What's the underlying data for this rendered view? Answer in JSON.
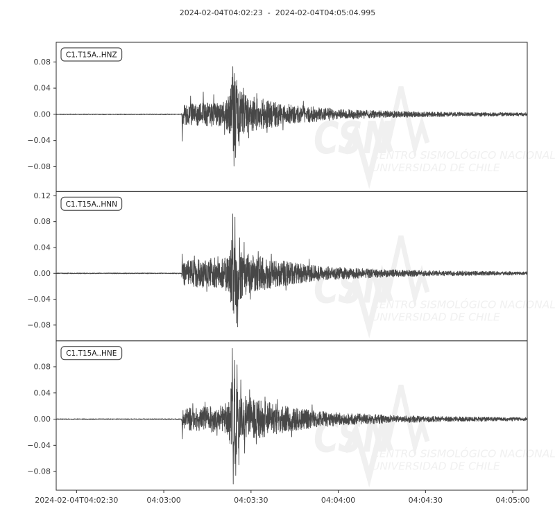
{
  "title": "2024-02-04T04:02:23  -  2024-02-04T04:05:04.995",
  "watermark": {
    "logo": "CSN",
    "line1": "CENTRO SISMOLÓGICO NACIONAL",
    "line2": "UNIVERSIDAD DE CHILE"
  },
  "colors": {
    "background": "#ffffff",
    "trace": "#474747",
    "spine": "#2b2b2b",
    "tick_label": "#3a3a3a",
    "title": "#333333",
    "watermark": "#f0f0f0",
    "station_box_border": "#4d4d4d",
    "station_label": "#1a1a1a"
  },
  "x_axis": {
    "start_time": "2024-02-04T04:02:23",
    "end_time": "2024-02-04T04:05:04.995",
    "duration_s": 161.995,
    "ticks": [
      {
        "t": 7,
        "label": "2024-02-04T04:02:30"
      },
      {
        "t": 37,
        "label": "04:03:00"
      },
      {
        "t": 67,
        "label": "04:03:30"
      },
      {
        "t": 97,
        "label": "04:04:00"
      },
      {
        "t": 127,
        "label": "04:04:30"
      },
      {
        "t": 157,
        "label": "04:05:00"
      }
    ]
  },
  "chart_data": {
    "type": "line",
    "kind": "seismogram",
    "title": "2024-02-04T04:02:23  -  2024-02-04T04:05:04.995",
    "grid": false,
    "shared_x": true,
    "p_arrival_s": 43.2,
    "s_arrival_s": 60.4,
    "traces": [
      {
        "id": "C1.T15A..HNZ",
        "ylim": [
          -0.118,
          0.11
        ],
        "yticks": [
          0.08,
          0.04,
          0.0,
          -0.04,
          -0.08
        ],
        "peak": 0.073,
        "trough": -0.079,
        "seed": 11,
        "envelope": [
          [
            0,
            0.0007
          ],
          [
            43.1,
            0.0007
          ],
          [
            43.3,
            0.02
          ],
          [
            44.5,
            0.016
          ],
          [
            48,
            0.017
          ],
          [
            52,
            0.018
          ],
          [
            56,
            0.019
          ],
          [
            58.5,
            0.022
          ],
          [
            59.6,
            0.03
          ],
          [
            60.4,
            0.058
          ],
          [
            61,
            0.068
          ],
          [
            61.6,
            0.06
          ],
          [
            62.5,
            0.045
          ],
          [
            63.5,
            0.036
          ],
          [
            65,
            0.03
          ],
          [
            68,
            0.027
          ],
          [
            71,
            0.024
          ],
          [
            75,
            0.02
          ],
          [
            80,
            0.016
          ],
          [
            86,
            0.013
          ],
          [
            92,
            0.01
          ],
          [
            99,
            0.008
          ],
          [
            106,
            0.0065
          ],
          [
            113,
            0.0055
          ],
          [
            121,
            0.0045
          ],
          [
            130,
            0.0038
          ],
          [
            140,
            0.0032
          ],
          [
            152,
            0.0028
          ],
          [
            162,
            0.0025
          ]
        ],
        "spikes": [
          [
            43.4,
            -0.041
          ],
          [
            46.2,
            0.028
          ],
          [
            50.6,
            0.034
          ],
          [
            54.2,
            0.03
          ],
          [
            57.9,
            -0.031
          ],
          [
            60.75,
            0.073
          ],
          [
            61.15,
            -0.079
          ],
          [
            61.7,
            -0.066
          ],
          [
            62.1,
            0.052
          ],
          [
            62.9,
            -0.048
          ],
          [
            64.3,
            0.04
          ],
          [
            66.2,
            -0.036
          ],
          [
            69.0,
            0.032
          ],
          [
            72.5,
            -0.028
          ],
          [
            78,
            -0.024
          ],
          [
            85,
            0.02
          ]
        ]
      },
      {
        "id": "C1.T15A..HNN",
        "ylim": [
          -0.1045,
          0.1265
        ],
        "yticks": [
          0.12,
          0.08,
          0.04,
          0.0,
          -0.04,
          -0.08
        ],
        "peak": 0.092,
        "trough": -0.083,
        "seed": 23,
        "envelope": [
          [
            0,
            0.0007
          ],
          [
            43.1,
            0.0007
          ],
          [
            43.3,
            0.018
          ],
          [
            45,
            0.02
          ],
          [
            49,
            0.022
          ],
          [
            53,
            0.024
          ],
          [
            57,
            0.024
          ],
          [
            59.3,
            0.028
          ],
          [
            60.3,
            0.055
          ],
          [
            61,
            0.07
          ],
          [
            61.7,
            0.062
          ],
          [
            62.5,
            0.048
          ],
          [
            63.5,
            0.04
          ],
          [
            65,
            0.034
          ],
          [
            68,
            0.029
          ],
          [
            71,
            0.026
          ],
          [
            75,
            0.022
          ],
          [
            80,
            0.018
          ],
          [
            86,
            0.014
          ],
          [
            92,
            0.011
          ],
          [
            99,
            0.009
          ],
          [
            106,
            0.0075
          ],
          [
            113,
            0.006
          ],
          [
            121,
            0.005
          ],
          [
            130,
            0.0042
          ],
          [
            140,
            0.0036
          ],
          [
            152,
            0.003
          ],
          [
            162,
            0.0027
          ]
        ],
        "spikes": [
          [
            43.35,
            0.03
          ],
          [
            47.5,
            0.027
          ],
          [
            51.8,
            -0.028
          ],
          [
            55.6,
            0.026
          ],
          [
            58.4,
            -0.027
          ],
          [
            60.7,
            0.092
          ],
          [
            61.05,
            -0.062
          ],
          [
            61.45,
            0.087
          ],
          [
            61.9,
            -0.077
          ],
          [
            62.4,
            -0.083
          ],
          [
            63.1,
            0.055
          ],
          [
            64.6,
            0.048
          ],
          [
            66.8,
            -0.04
          ],
          [
            69.5,
            0.034
          ],
          [
            74.0,
            0.03
          ],
          [
            79,
            -0.026
          ],
          [
            87,
            0.022
          ]
        ]
      },
      {
        "id": "C1.T15A..HNE",
        "ylim": [
          -0.1085,
          0.1195
        ],
        "yticks": [
          0.08,
          0.04,
          0.0,
          -0.04,
          -0.08
        ],
        "peak": 0.108,
        "trough": -0.099,
        "seed": 37,
        "envelope": [
          [
            0,
            0.0007
          ],
          [
            43.1,
            0.0007
          ],
          [
            43.3,
            0.016
          ],
          [
            45,
            0.017
          ],
          [
            49,
            0.018
          ],
          [
            53,
            0.02
          ],
          [
            57,
            0.021
          ],
          [
            59.2,
            0.026
          ],
          [
            60.2,
            0.06
          ],
          [
            61,
            0.078
          ],
          [
            61.8,
            0.068
          ],
          [
            62.6,
            0.052
          ],
          [
            63.6,
            0.042
          ],
          [
            65,
            0.036
          ],
          [
            68,
            0.031
          ],
          [
            71,
            0.028
          ],
          [
            75,
            0.024
          ],
          [
            80,
            0.019
          ],
          [
            86,
            0.015
          ],
          [
            92,
            0.012
          ],
          [
            99,
            0.0095
          ],
          [
            106,
            0.008
          ],
          [
            113,
            0.0065
          ],
          [
            121,
            0.0052
          ],
          [
            130,
            0.0043
          ],
          [
            140,
            0.0036
          ],
          [
            152,
            0.003
          ],
          [
            162,
            0.0026
          ]
        ],
        "spikes": [
          [
            43.4,
            -0.03
          ],
          [
            47.0,
            0.024
          ],
          [
            51.2,
            0.026
          ],
          [
            55.3,
            -0.025
          ],
          [
            58.2,
            0.024
          ],
          [
            60.55,
            0.108
          ],
          [
            60.9,
            -0.099
          ],
          [
            61.35,
            0.09
          ],
          [
            61.75,
            -0.086
          ],
          [
            62.2,
            0.083
          ],
          [
            62.8,
            -0.07
          ],
          [
            63.5,
            0.06
          ],
          [
            64.8,
            -0.052
          ],
          [
            66.5,
            0.045
          ],
          [
            68.8,
            -0.038
          ],
          [
            71.8,
            0.034
          ],
          [
            76,
            0.03
          ],
          [
            81,
            -0.027
          ],
          [
            88,
            0.022
          ]
        ]
      }
    ]
  }
}
